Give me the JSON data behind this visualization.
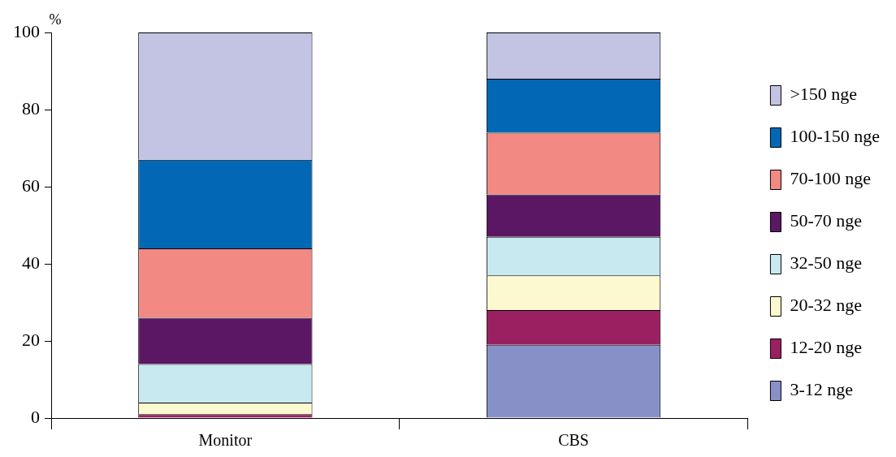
{
  "chart_data": {
    "type": "bar",
    "stacked": true,
    "ylabel": "%",
    "categories": [
      "Monitor",
      "CBS"
    ],
    "series": [
      {
        "name": "3-12 nge",
        "color": "#8791c8",
        "values": [
          0,
          19
        ]
      },
      {
        "name": "12-20 nge",
        "color": "#9b2062",
        "values": [
          1,
          9
        ]
      },
      {
        "name": "20-32 nge",
        "color": "#fcf8d0",
        "values": [
          3,
          9
        ]
      },
      {
        "name": "32-50 nge",
        "color": "#c8e9f0",
        "values": [
          10,
          10
        ]
      },
      {
        "name": "50-70 nge",
        "color": "#5b1763",
        "values": [
          12,
          11
        ]
      },
      {
        "name": "70-100 nge",
        "color": "#f28983",
        "values": [
          18,
          16
        ]
      },
      {
        "name": "100-150 nge",
        "color": "#0268b6",
        "values": [
          23,
          14
        ]
      },
      {
        "name": ">150 nge",
        "color": "#c3c3e3",
        "values": [
          33,
          12
        ]
      }
    ],
    "ylim": [
      0,
      100
    ],
    "yticks": [
      0,
      20,
      40,
      60,
      80,
      100
    ],
    "grid": false,
    "legend": "right"
  }
}
